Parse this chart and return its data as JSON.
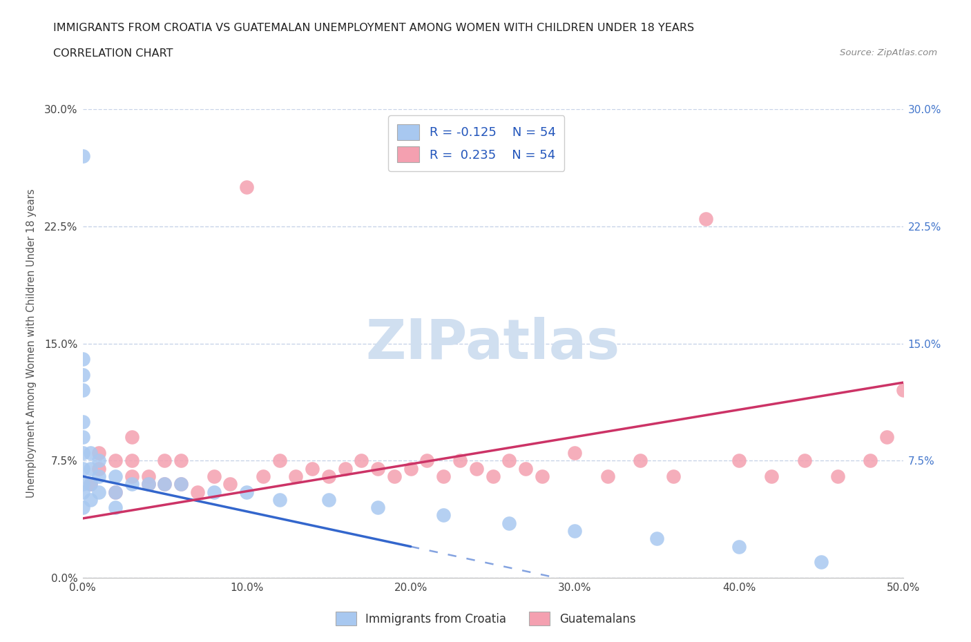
{
  "title_line1": "IMMIGRANTS FROM CROATIA VS GUATEMALAN UNEMPLOYMENT AMONG WOMEN WITH CHILDREN UNDER 18 YEARS",
  "title_line2": "CORRELATION CHART",
  "source_text": "Source: ZipAtlas.com",
  "ylabel": "Unemployment Among Women with Children Under 18 years",
  "xlim": [
    0.0,
    0.5
  ],
  "ylim": [
    0.0,
    0.3
  ],
  "xtick_labels": [
    "0.0%",
    "10.0%",
    "20.0%",
    "30.0%",
    "40.0%",
    "50.0%"
  ],
  "xtick_values": [
    0.0,
    0.1,
    0.2,
    0.3,
    0.4,
    0.5
  ],
  "ytick_labels": [
    "0.0%",
    "7.5%",
    "15.0%",
    "22.5%",
    "30.0%"
  ],
  "ytick_values": [
    0.0,
    0.075,
    0.15,
    0.225,
    0.3
  ],
  "right_ytick_labels": [
    "30.0%",
    "22.5%",
    "15.0%",
    "7.5%"
  ],
  "right_ytick_values": [
    0.3,
    0.225,
    0.15,
    0.075
  ],
  "color_croatia": "#a8c8f0",
  "color_guatemalan": "#f4a0b0",
  "color_trendline_croatia": "#3366cc",
  "color_trendline_guatemalan": "#cc3366",
  "background_color": "#ffffff",
  "grid_color": "#c8d4e8",
  "watermark_color": "#d0dff0",
  "croatia_x": [
    0.0,
    0.0,
    0.0,
    0.0,
    0.0,
    0.0,
    0.0,
    0.0,
    0.0,
    0.0,
    0.0,
    0.005,
    0.005,
    0.005,
    0.005,
    0.01,
    0.01,
    0.01,
    0.02,
    0.02,
    0.02,
    0.03,
    0.04,
    0.05,
    0.06,
    0.08,
    0.1,
    0.12,
    0.15,
    0.18,
    0.22,
    0.26,
    0.3,
    0.35,
    0.4,
    0.45
  ],
  "croatia_y": [
    0.27,
    0.14,
    0.13,
    0.12,
    0.1,
    0.09,
    0.08,
    0.07,
    0.06,
    0.055,
    0.045,
    0.08,
    0.07,
    0.06,
    0.05,
    0.075,
    0.065,
    0.055,
    0.065,
    0.055,
    0.045,
    0.06,
    0.06,
    0.06,
    0.06,
    0.055,
    0.055,
    0.05,
    0.05,
    0.045,
    0.04,
    0.035,
    0.03,
    0.025,
    0.02,
    0.01
  ],
  "guatemalan_x": [
    0.005,
    0.01,
    0.01,
    0.02,
    0.02,
    0.03,
    0.03,
    0.03,
    0.04,
    0.04,
    0.05,
    0.05,
    0.06,
    0.06,
    0.07,
    0.08,
    0.09,
    0.1,
    0.11,
    0.12,
    0.13,
    0.14,
    0.15,
    0.16,
    0.17,
    0.18,
    0.19,
    0.2,
    0.21,
    0.22,
    0.23,
    0.24,
    0.25,
    0.26,
    0.27,
    0.28,
    0.3,
    0.32,
    0.34,
    0.36,
    0.38,
    0.4,
    0.42,
    0.44,
    0.46,
    0.48,
    0.49,
    0.5
  ],
  "guatemalan_y": [
    0.06,
    0.07,
    0.08,
    0.055,
    0.075,
    0.065,
    0.075,
    0.09,
    0.06,
    0.065,
    0.06,
    0.075,
    0.06,
    0.075,
    0.055,
    0.065,
    0.06,
    0.25,
    0.065,
    0.075,
    0.065,
    0.07,
    0.065,
    0.07,
    0.075,
    0.07,
    0.065,
    0.07,
    0.075,
    0.065,
    0.075,
    0.07,
    0.065,
    0.075,
    0.07,
    0.065,
    0.08,
    0.065,
    0.075,
    0.065,
    0.23,
    0.075,
    0.065,
    0.075,
    0.065,
    0.075,
    0.09,
    0.12
  ],
  "trendline_croatia_x0": 0.0,
  "trendline_croatia_y0": 0.065,
  "trendline_croatia_x1": 0.2,
  "trendline_croatia_y1": 0.02,
  "trendline_guate_x0": 0.0,
  "trendline_guate_y0": 0.038,
  "trendline_guate_x1": 0.5,
  "trendline_guate_y1": 0.125
}
